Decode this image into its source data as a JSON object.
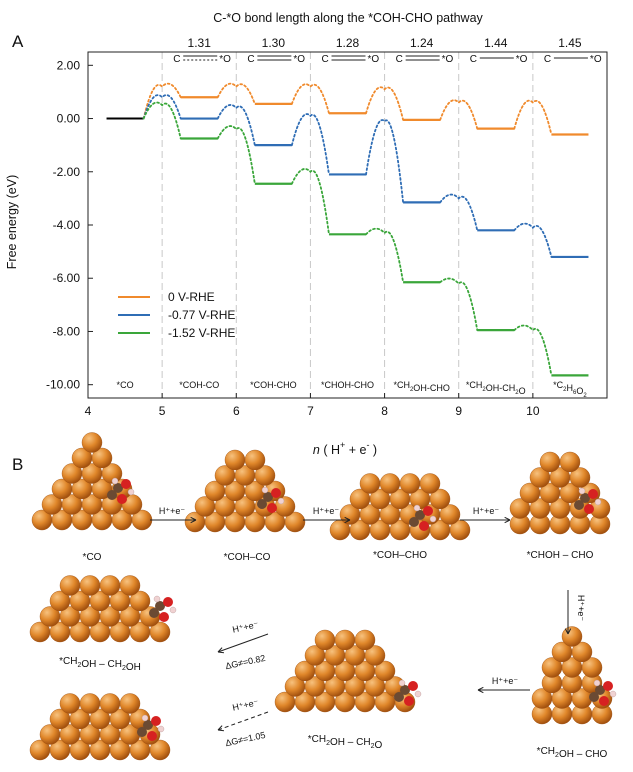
{
  "panel_a": {
    "letter": "A",
    "bond_header": "C-*O bond length along the *COH-CHO pathway",
    "bond_lengths": [
      "1.31",
      "1.30",
      "1.28",
      "1.24",
      "1.44",
      "1.45"
    ],
    "bond_type_icons": [
      "partial-double-bond-icon",
      "double-bond-icon",
      "double-bond-icon",
      "double-bond-icon",
      "single-bond-icon",
      "single-bond-icon"
    ],
    "bond_atoms": {
      "c": "C",
      "o": "O"
    },
    "states": [
      "*CO",
      "*COH-CO",
      "*COH-CHO",
      "*CHOH-CHO",
      "*CH2OH-CHO",
      "*CH2OH-CH2O",
      "*C2H6O2"
    ]
  },
  "panel_b": {
    "letter": "B",
    "labels": [
      "*CO",
      "*COH–CO",
      "*COH–CHO",
      "*CHOH – CHO",
      "*CH2OH – CHO",
      "*CH2OH – CH2O",
      "*CH2OH – CH2OH"
    ],
    "step_label": "H⁺+e⁻",
    "barrier_1": "ΔG≠=0.82",
    "barrier_2": "ΔG≠=1.05",
    "colors": {
      "copper": "#e0872a",
      "copper_dark": "#a4520f",
      "carbon": "#6b4a33",
      "oxygen": "#d62121",
      "hydrogen": "#f0d2d2"
    }
  },
  "chart_data": {
    "type": "line",
    "title": "",
    "xlabel": "n ( H+ + e- )",
    "ylabel": "Free energy (eV)",
    "xlim": [
      4,
      11
    ],
    "ylim": [
      -10.5,
      2.5
    ],
    "x_ticks": [
      4,
      5,
      6,
      7,
      8,
      9,
      10
    ],
    "y_ticks": [
      2,
      0,
      -2,
      -4,
      -6,
      -8,
      -10
    ],
    "y_tick_labels": [
      "2.00",
      "0.00",
      "-2.00",
      "-4.00",
      "-6.00",
      "-8.00",
      "-10.00"
    ],
    "grid": false,
    "legend_position": "lower-left",
    "initial_state": {
      "x": [
        4.25,
        4.75
      ],
      "y": 0.0,
      "color": "#000000"
    },
    "steps": [
      {
        "x": [
          5.25,
          5.75
        ]
      },
      {
        "x": [
          6.25,
          6.75
        ]
      },
      {
        "x": [
          7.25,
          7.75
        ]
      },
      {
        "x": [
          8.25,
          8.75
        ]
      },
      {
        "x": [
          9.25,
          9.75
        ]
      },
      {
        "x": [
          10.25,
          10.75
        ]
      }
    ],
    "series": [
      {
        "name": "0 V-RHE",
        "color": "#f08a2c",
        "values": [
          0.8,
          0.55,
          0.2,
          -0.05,
          -0.38,
          -0.6
        ],
        "ts_heights": [
          1.2,
          1.2,
          1.2,
          1.1,
          0.6,
          0.6
        ]
      },
      {
        "name": "-0.77 V-RHE",
        "color": "#2f6db5",
        "values": [
          0.0,
          -1.0,
          -2.1,
          -3.15,
          -4.2,
          -5.2
        ],
        "ts_heights": [
          0.8,
          0.4,
          0.1,
          -0.1,
          -3.0,
          -4.1
        ]
      },
      {
        "name": "-1.52 V-RHE",
        "color": "#3aa63a",
        "values": [
          -0.75,
          -2.45,
          -4.35,
          -6.15,
          -7.95,
          -9.65
        ],
        "ts_heights": [
          0.5,
          -0.4,
          -2.0,
          -4.3,
          -6.2,
          -7.95
        ]
      }
    ]
  }
}
